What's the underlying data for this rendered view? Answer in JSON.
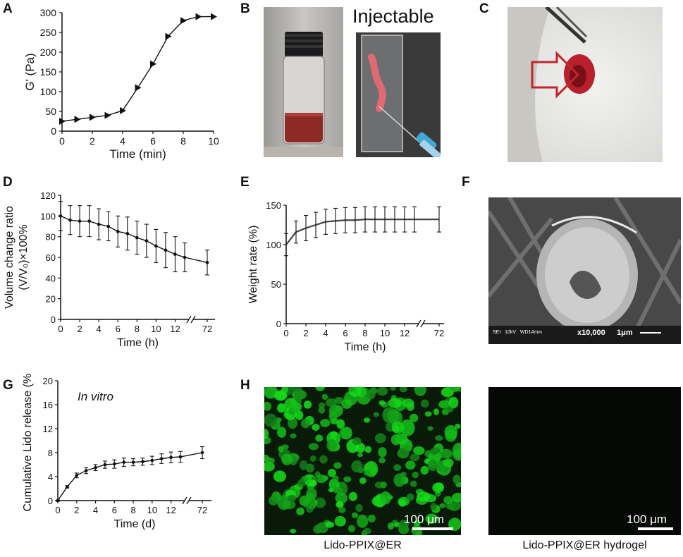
{
  "panels": {
    "a": {
      "letter": "A"
    },
    "b": {
      "letter": "B",
      "inject_label": "Injectable"
    },
    "c": {
      "letter": "C"
    },
    "d": {
      "letter": "D"
    },
    "e": {
      "letter": "E"
    },
    "f": {
      "letter": "F",
      "sem_info": "SEI   10kV   WD14mm",
      "sem_mag": "x10,000",
      "sem_scale": "1μm"
    },
    "g": {
      "letter": "G"
    },
    "h": {
      "letter": "H",
      "left_caption": "Lido-PPIX@ER",
      "right_caption": "Lido-PPIX@ER hydrogel",
      "scale_text": "100 μm"
    }
  },
  "chart_data": [
    {
      "id": "A",
      "type": "line",
      "xlabel": "Time (min)",
      "ylabel": "G' (Pa)",
      "xlim": [
        0,
        10
      ],
      "ylim": [
        0,
        300
      ],
      "xticks": [
        0,
        2,
        4,
        6,
        8,
        10
      ],
      "yticks": [
        0,
        50,
        100,
        150,
        200,
        250,
        300
      ],
      "x": [
        0,
        1,
        2,
        3,
        4,
        5,
        6,
        7,
        8,
        9,
        10
      ],
      "y": [
        25,
        30,
        35,
        40,
        52,
        110,
        170,
        240,
        280,
        290,
        290
      ],
      "marker": "triangle-right"
    },
    {
      "id": "D",
      "type": "line",
      "xlabel": "Time (h)",
      "ylabel_line1": "Volume change ratio",
      "ylabel_line2": "(V/V₀)×100%",
      "ylim": [
        0,
        120
      ],
      "xticks": [
        "0",
        "2",
        "4",
        "6",
        "8",
        "10",
        "12",
        "72"
      ],
      "yticks": [
        0,
        20,
        40,
        60,
        80,
        100,
        120
      ],
      "x": [
        0,
        1,
        2,
        3,
        4,
        5,
        6,
        7,
        8,
        9,
        10,
        11,
        12,
        13,
        72
      ],
      "y": [
        100,
        96,
        95,
        95,
        92,
        90,
        85,
        83,
        79,
        76,
        71,
        67,
        63,
        60,
        55
      ],
      "err": [
        14,
        14,
        15,
        15,
        15,
        14,
        15,
        16,
        16,
        16,
        16,
        17,
        17,
        14,
        12
      ]
    },
    {
      "id": "E",
      "type": "line",
      "xlabel": "Time (h)",
      "ylabel": "Weight rate (%)",
      "ylim": [
        0,
        150
      ],
      "xticks": [
        "0",
        "2",
        "4",
        "6",
        "8",
        "10",
        "12",
        "72"
      ],
      "yticks": [
        0,
        50,
        100,
        150
      ],
      "x": [
        0,
        0.5,
        1,
        2,
        3,
        4,
        5,
        6,
        7,
        8,
        9,
        10,
        11,
        12,
        13,
        72
      ],
      "y": [
        100,
        108,
        116,
        121,
        125,
        129,
        130,
        131,
        131,
        132,
        132,
        132,
        132,
        132,
        132,
        132
      ],
      "err": [
        14,
        14,
        14,
        16,
        16,
        16,
        16,
        16,
        16,
        16,
        16,
        16,
        16,
        16,
        16,
        16
      ]
    },
    {
      "id": "G",
      "type": "line",
      "xlabel": "Time (d)",
      "ylabel": "Cumulative Lido release (%)",
      "annotation": "In vitro",
      "ylim": [
        0,
        20
      ],
      "xticks": [
        "0",
        "2",
        "4",
        "6",
        "8",
        "10",
        "12",
        "72"
      ],
      "yticks": [
        0,
        4,
        8,
        12,
        16,
        20
      ],
      "x": [
        0,
        1,
        2,
        3,
        4,
        5,
        6,
        7,
        8,
        9,
        10,
        11,
        12,
        13,
        72
      ],
      "y": [
        0,
        2.3,
        4.2,
        5,
        5.5,
        6,
        6.1,
        6.4,
        6.4,
        6.5,
        6.7,
        7,
        7.2,
        7.3,
        8
      ],
      "err": [
        0.1,
        0.2,
        0.4,
        0.5,
        0.5,
        0.6,
        0.7,
        0.7,
        0.6,
        0.6,
        0.7,
        0.8,
        0.9,
        0.9,
        1
      ]
    }
  ]
}
